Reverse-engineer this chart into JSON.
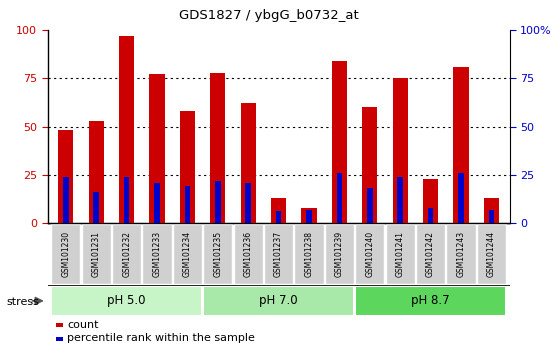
{
  "title": "GDS1827 / ybgG_b0732_at",
  "samples": [
    "GSM101230",
    "GSM101231",
    "GSM101232",
    "GSM101233",
    "GSM101234",
    "GSM101235",
    "GSM101236",
    "GSM101237",
    "GSM101238",
    "GSM101239",
    "GSM101240",
    "GSM101241",
    "GSM101242",
    "GSM101243",
    "GSM101244"
  ],
  "count_values": [
    48,
    53,
    97,
    77,
    58,
    78,
    62,
    13,
    8,
    84,
    60,
    75,
    23,
    81,
    13
  ],
  "percentile_values": [
    24,
    16,
    24,
    21,
    19,
    22,
    21,
    6,
    7,
    26,
    18,
    24,
    8,
    26,
    7
  ],
  "red_color": "#CC0000",
  "blue_color": "#0000CC",
  "ylim": [
    0,
    100
  ],
  "yticks": [
    0,
    25,
    50,
    75,
    100
  ],
  "group_data": [
    {
      "label": "pH 5.0",
      "start": 0,
      "end": 4,
      "color": "#c8f5c8"
    },
    {
      "label": "pH 7.0",
      "start": 5,
      "end": 9,
      "color": "#a8e8a8"
    },
    {
      "label": "pH 8.7",
      "start": 10,
      "end": 14,
      "color": "#5cd65c"
    }
  ],
  "stress_label": "stress",
  "legend_count": "count",
  "legend_percentile": "percentile rank within the sample",
  "tick_label_bg": "#d0d0d0"
}
